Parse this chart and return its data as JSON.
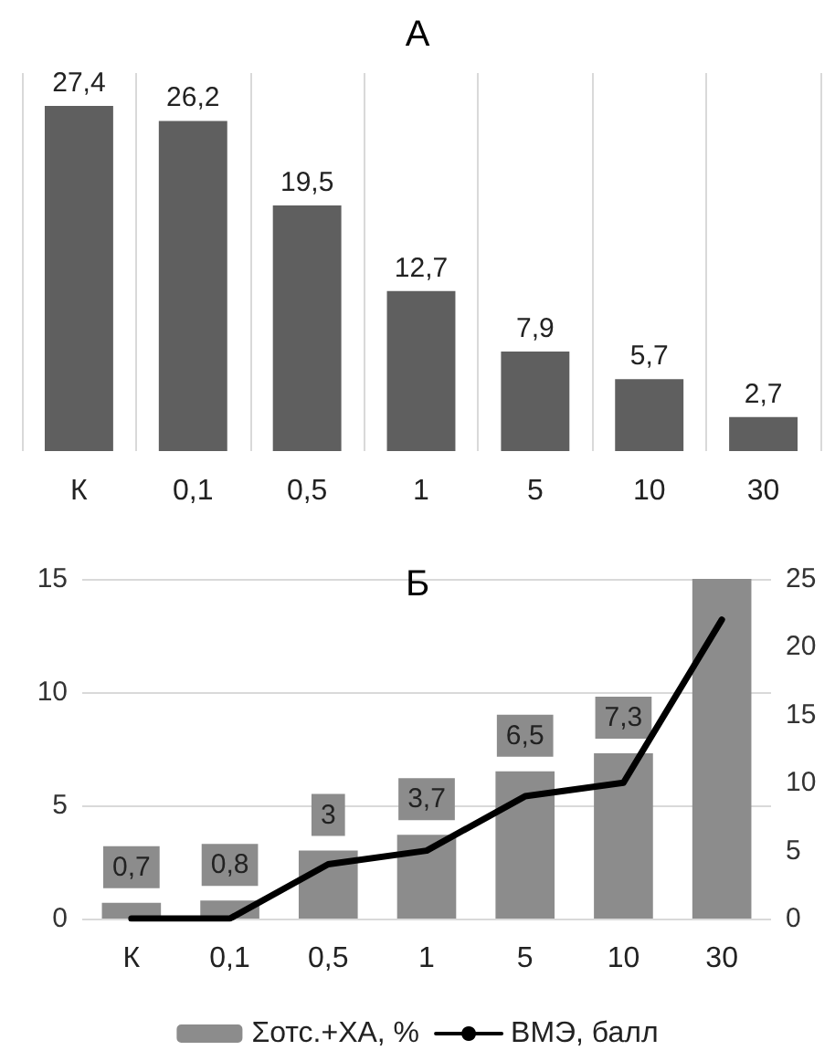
{
  "chart_data": [
    {
      "type": "bar",
      "title": "А",
      "categories": [
        "К",
        "0,1",
        "0,5",
        "1",
        "5",
        "10",
        "30"
      ],
      "grid": "x",
      "legend": false,
      "series": [
        {
          "color": "#5f5f5f",
          "values": [
            27.4,
            26.2,
            19.5,
            12.7,
            7.9,
            5.7,
            2.7
          ],
          "value_labels": [
            "27,4",
            "26,2",
            "19,5",
            "12,7",
            "7,9",
            "5,7",
            "2,7"
          ]
        }
      ]
    },
    {
      "type": "bar",
      "title": "Б",
      "categories": [
        "К",
        "0,1",
        "0,5",
        "1",
        "5",
        "10",
        "30"
      ],
      "grid": "y",
      "legend": "bottom",
      "ylim": [
        0,
        15
      ],
      "yticks": [
        0,
        5,
        10,
        15
      ],
      "y2lim": [
        0,
        25
      ],
      "y2ticks": [
        0,
        5,
        10,
        15,
        20,
        25
      ],
      "series": [
        {
          "name": "Σотс.+ХА, %",
          "color": "#8c8c8c",
          "values": [
            0.7,
            0.8,
            3,
            3.7,
            6.5,
            7.3,
            15
          ],
          "value_labels": [
            "0,7",
            "0,8",
            "3",
            "3,7",
            "6,5",
            "7,3",
            null
          ]
        },
        {
          "name": "ВМЭ, балл",
          "type": "line",
          "axis": "y2",
          "color": "#000000",
          "marker": "none",
          "line_style": "solid",
          "values": [
            0,
            0,
            4,
            5,
            9,
            10,
            22
          ]
        }
      ]
    }
  ]
}
